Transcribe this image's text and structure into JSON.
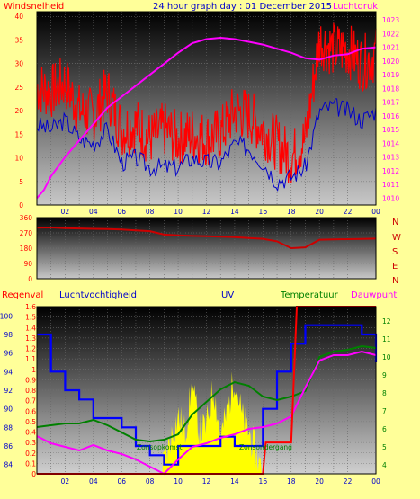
{
  "header": {
    "left_label": "Windsnelheid",
    "title": "24 hour graph day : 01 December 2015",
    "right_label": "Luchtdruk"
  },
  "colors": {
    "background": "#ffff99",
    "wind_gust": "#ff0000",
    "wind_avg": "#0000cc",
    "pressure": "#ff00ff",
    "direction": "#cc0000",
    "temperature": "#008000",
    "humidity": "#0000ff",
    "dewpoint": "#ff00ff",
    "rain": "#ff0000",
    "uv": "#ffff00",
    "axis_blue": "#0000cc"
  },
  "bottom_header": {
    "rain": "Regenval",
    "humidity": "Luchtvochtigheid",
    "uv": "UV",
    "temperature": "Temperatuur",
    "dewpoint": "Dauwpunt"
  },
  "compass": [
    "N",
    "W",
    "S",
    "E",
    "N"
  ],
  "annotations": {
    "sunrise": "Zonsopkomst",
    "sunset": "Zonsondergang"
  },
  "chart_data": [
    {
      "type": "line",
      "x_ticks": [
        "02",
        "04",
        "06",
        "08",
        "10",
        "12",
        "14",
        "16",
        "18",
        "20",
        "22",
        "00"
      ],
      "y_left_ticks": [
        0,
        5,
        10,
        15,
        20,
        25,
        30,
        35,
        40
      ],
      "y_right_ticks": [
        1010,
        1011,
        1012,
        1013,
        1014,
        1015,
        1016,
        1017,
        1018,
        1019,
        1020,
        1021,
        1022,
        1023
      ],
      "ylim_left": [
        0,
        41
      ],
      "ylim_right": [
        1009.5,
        1023.6
      ],
      "series": [
        {
          "name": "Windsnelheid",
          "axis": "left",
          "x": [
            0,
            1,
            2,
            3,
            4,
            5,
            6,
            7,
            8,
            9,
            10,
            11,
            12,
            13,
            14,
            15,
            16,
            17,
            18,
            19,
            20,
            21,
            22,
            23,
            24
          ],
          "values": [
            25,
            24,
            26,
            20,
            19,
            24,
            16,
            17,
            14,
            16,
            14,
            15,
            14,
            15,
            20,
            19,
            16,
            13,
            10,
            14,
            35,
            33,
            33,
            30,
            32
          ]
        },
        {
          "name": "",
          "axis": "left",
          "x": [
            0,
            1,
            2,
            3,
            4,
            5,
            6,
            7,
            8,
            9,
            10,
            11,
            12,
            13,
            14,
            15,
            16,
            17,
            18,
            19,
            20,
            21,
            22,
            23,
            24
          ],
          "values": [
            17,
            16,
            18,
            14,
            13,
            16,
            9,
            10,
            8,
            8,
            8,
            10,
            9,
            9,
            13,
            12,
            9,
            5,
            6,
            8,
            20,
            21,
            20,
            18,
            20
          ]
        },
        {
          "name": "Luchtdruk",
          "axis": "right",
          "x": [
            0,
            0.5,
            1,
            2,
            3,
            4,
            5,
            6,
            7,
            8,
            9,
            10,
            11,
            12,
            13,
            14,
            15,
            16,
            17,
            18,
            19,
            20,
            21,
            22,
            23,
            24
          ],
          "values": [
            1010,
            1010.6,
            1011.6,
            1013,
            1014.2,
            1015.4,
            1016.6,
            1017.4,
            1018.2,
            1019,
            1019.8,
            1020.6,
            1021.3,
            1021.6,
            1021.7,
            1021.6,
            1021.4,
            1021.2,
            1020.9,
            1020.6,
            1020.2,
            1020.1,
            1020.4,
            1020.5,
            1020.9,
            1021
          ]
        }
      ]
    },
    {
      "type": "line",
      "x_ticks": [
        "02",
        "04",
        "06",
        "08",
        "10",
        "12",
        "14",
        "16",
        "18",
        "20",
        "22",
        "00"
      ],
      "y_ticks": [
        0,
        90,
        180,
        270,
        360
      ],
      "ylim": [
        0,
        360
      ],
      "series": [
        {
          "name": "",
          "x": [
            0,
            1,
            2,
            3,
            4,
            5,
            6,
            7,
            8,
            9,
            10,
            11,
            12,
            13,
            14,
            15,
            16,
            17,
            18,
            19,
            20,
            21,
            22,
            23,
            24
          ],
          "values": [
            300,
            302,
            298,
            296,
            294,
            292,
            290,
            285,
            280,
            260,
            255,
            252,
            250,
            248,
            245,
            240,
            235,
            220,
            180,
            185,
            230,
            232,
            233,
            234,
            236
          ]
        }
      ]
    },
    {
      "type": "line",
      "x_ticks": [
        "02",
        "04",
        "06",
        "08",
        "10",
        "12",
        "14",
        "16",
        "18",
        "20",
        "22",
        "00"
      ],
      "rain_ticks": [
        0,
        0.1,
        0.2,
        0.3,
        0.4,
        0.5,
        0.6,
        0.7,
        0.8,
        0.9,
        1,
        1.1,
        1.2,
        1.3,
        1.4,
        1.5,
        1.6
      ],
      "humidity_ticks": [
        84,
        86,
        88,
        90,
        92,
        94,
        96,
        98,
        100
      ],
      "temp_ticks": [
        4,
        5,
        6,
        7,
        8,
        9,
        10,
        11,
        12
      ],
      "rain_lim": [
        0,
        1.6
      ],
      "humidity_lim": [
        83,
        101
      ],
      "temp_lim": [
        3.5,
        12.8
      ],
      "series": [
        {
          "name": "Regenval",
          "axis": "rain",
          "x": [
            0,
            16,
            16.2,
            18,
            18.4,
            24
          ],
          "values": [
            0,
            0,
            0.3,
            0.3,
            1.6,
            1.6
          ]
        },
        {
          "name": "Luchtvochtigheid",
          "axis": "humidity",
          "x": [
            0,
            1,
            2,
            3,
            4,
            5,
            6,
            7,
            8,
            9,
            10,
            11,
            12,
            13,
            14,
            15,
            16,
            17,
            18,
            19,
            20,
            21,
            22,
            23,
            24
          ],
          "values": [
            98,
            94,
            92,
            91,
            89,
            89,
            88,
            86,
            85,
            84,
            86,
            86,
            86,
            87,
            86,
            86,
            90,
            94,
            97,
            99,
            99,
            99,
            99,
            98,
            95
          ]
        },
        {
          "name": "Temperatuur",
          "axis": "temp",
          "x": [
            0,
            1,
            2,
            3,
            4,
            5,
            6,
            7,
            8,
            9,
            10,
            11,
            12,
            13,
            14,
            15,
            16,
            17,
            18,
            19,
            20,
            21,
            22,
            23,
            24
          ],
          "values": [
            6.1,
            6.2,
            6.3,
            6.3,
            6.5,
            6.2,
            5.8,
            5.4,
            5.3,
            5.4,
            5.7,
            6.8,
            7.5,
            8.2,
            8.6,
            8.4,
            7.8,
            7.6,
            7.8,
            8.1,
            10,
            10.3,
            10.4,
            10.6,
            10.5
          ]
        },
        {
          "name": "Dauwpunt",
          "axis": "temp",
          "x": [
            0,
            1,
            2,
            3,
            4,
            5,
            6,
            7,
            8,
            9,
            10,
            11,
            12,
            13,
            14,
            15,
            16,
            17,
            18,
            19,
            20,
            21,
            22,
            23,
            24
          ],
          "values": [
            5.6,
            5.2,
            5,
            4.8,
            5.1,
            4.8,
            4.6,
            4.3,
            3.9,
            3.5,
            4.3,
            5,
            5.2,
            5.5,
            5.7,
            6,
            6.1,
            6.3,
            6.7,
            8.3,
            9.8,
            10.1,
            10.1,
            10.3,
            10.1
          ]
        },
        {
          "name": "UV",
          "axis": "rain",
          "x": [
            8.8,
            9.5,
            10,
            10.5,
            11,
            11.5,
            12,
            12.5,
            13,
            13.5,
            14,
            14.5,
            15,
            15.5,
            16
          ],
          "values": [
            0,
            0.35,
            0.55,
            0.4,
            0.85,
            0.4,
            0.45,
            0.85,
            0.35,
            0.6,
            0.95,
            0.55,
            0.4,
            0.2,
            0
          ]
        }
      ]
    }
  ]
}
